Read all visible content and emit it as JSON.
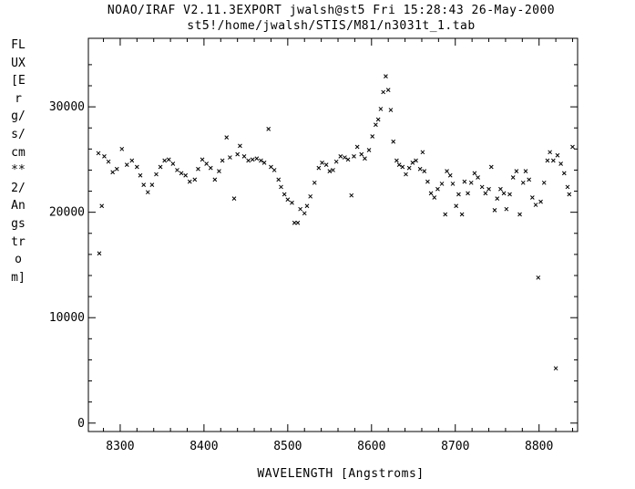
{
  "header": {
    "line1": "NOAO/IRAF V2.11.3EXPORT jwalsh@st5 Fri 15:28:43 26-May-2000",
    "line2": "st5!/home/jwalsh/STIS/M81/n3031t_1.tab"
  },
  "chart_data": {
    "type": "scatter",
    "title": "",
    "xlabel": "WAVELENGTH [Angstroms]",
    "ylabel": "FLUX [Erg/s/cm**2/Angstrom]",
    "xlim": [
      8262,
      8846
    ],
    "ylim": [
      -800,
      36500
    ],
    "xticks": [
      8300,
      8400,
      8500,
      8600,
      8700,
      8800
    ],
    "yticks": [
      0,
      10000,
      20000,
      30000
    ],
    "marker": "x",
    "grid": false,
    "points": [
      [
        8274,
        25600
      ],
      [
        8275,
        16100
      ],
      [
        8278,
        20600
      ],
      [
        8281,
        25300
      ],
      [
        8286,
        24800
      ],
      [
        8291,
        23800
      ],
      [
        8296,
        24100
      ],
      [
        8302,
        26000
      ],
      [
        8308,
        24500
      ],
      [
        8314,
        24900
      ],
      [
        8320,
        24300
      ],
      [
        8324,
        23500
      ],
      [
        8328,
        22600
      ],
      [
        8333,
        21900
      ],
      [
        8338,
        22600
      ],
      [
        8343,
        23600
      ],
      [
        8348,
        24300
      ],
      [
        8353,
        24900
      ],
      [
        8358,
        25000
      ],
      [
        8363,
        24600
      ],
      [
        8368,
        24000
      ],
      [
        8373,
        23700
      ],
      [
        8378,
        23500
      ],
      [
        8383,
        22900
      ],
      [
        8389,
        23100
      ],
      [
        8393,
        24100
      ],
      [
        8398,
        25000
      ],
      [
        8403,
        24600
      ],
      [
        8408,
        24200
      ],
      [
        8413,
        23100
      ],
      [
        8418,
        23900
      ],
      [
        8422,
        24900
      ],
      [
        8427,
        27100
      ],
      [
        8431,
        25200
      ],
      [
        8436,
        21300
      ],
      [
        8440,
        25500
      ],
      [
        8443,
        26300
      ],
      [
        8448,
        25300
      ],
      [
        8453,
        24900
      ],
      [
        8458,
        25000
      ],
      [
        8463,
        25100
      ],
      [
        8468,
        24900
      ],
      [
        8472,
        24700
      ],
      [
        8477,
        27900
      ],
      [
        8480,
        24300
      ],
      [
        8484,
        24000
      ],
      [
        8489,
        23100
      ],
      [
        8492,
        22400
      ],
      [
        8496,
        21700
      ],
      [
        8500,
        21200
      ],
      [
        8505,
        20900
      ],
      [
        8508,
        19000
      ],
      [
        8512,
        19000
      ],
      [
        8515,
        20300
      ],
      [
        8520,
        19900
      ],
      [
        8523,
        20600
      ],
      [
        8527,
        21500
      ],
      [
        8532,
        22800
      ],
      [
        8537,
        24200
      ],
      [
        8541,
        24700
      ],
      [
        8546,
        24500
      ],
      [
        8550,
        23900
      ],
      [
        8554,
        24000
      ],
      [
        8558,
        24800
      ],
      [
        8563,
        25300
      ],
      [
        8568,
        25200
      ],
      [
        8572,
        25000
      ],
      [
        8576,
        21600
      ],
      [
        8579,
        25300
      ],
      [
        8583,
        26200
      ],
      [
        8588,
        25500
      ],
      [
        8592,
        25100
      ],
      [
        8597,
        25900
      ],
      [
        8601,
        27200
      ],
      [
        8605,
        28300
      ],
      [
        8608,
        28800
      ],
      [
        8611,
        29800
      ],
      [
        8614,
        31400
      ],
      [
        8617,
        32900
      ],
      [
        8620,
        31600
      ],
      [
        8623,
        29700
      ],
      [
        8626,
        26700
      ],
      [
        8630,
        24900
      ],
      [
        8633,
        24500
      ],
      [
        8637,
        24300
      ],
      [
        8641,
        23600
      ],
      [
        8645,
        24200
      ],
      [
        8649,
        24700
      ],
      [
        8653,
        24900
      ],
      [
        8658,
        24100
      ],
      [
        8661,
        25700
      ],
      [
        8663,
        23900
      ],
      [
        8667,
        22900
      ],
      [
        8671,
        21800
      ],
      [
        8675,
        21400
      ],
      [
        8679,
        22200
      ],
      [
        8684,
        22700
      ],
      [
        8688,
        19800
      ],
      [
        8690,
        23900
      ],
      [
        8694,
        23500
      ],
      [
        8697,
        22700
      ],
      [
        8701,
        20600
      ],
      [
        8704,
        21700
      ],
      [
        8708,
        19800
      ],
      [
        8711,
        22900
      ],
      [
        8715,
        21800
      ],
      [
        8719,
        22800
      ],
      [
        8723,
        23700
      ],
      [
        8727,
        23300
      ],
      [
        8732,
        22400
      ],
      [
        8736,
        21800
      ],
      [
        8740,
        22200
      ],
      [
        8743,
        24300
      ],
      [
        8747,
        20200
      ],
      [
        8750,
        21300
      ],
      [
        8754,
        22200
      ],
      [
        8758,
        21800
      ],
      [
        8761,
        20300
      ],
      [
        8765,
        21700
      ],
      [
        8769,
        23300
      ],
      [
        8773,
        23900
      ],
      [
        8777,
        19800
      ],
      [
        8781,
        22800
      ],
      [
        8784,
        23900
      ],
      [
        8788,
        23100
      ],
      [
        8792,
        21400
      ],
      [
        8796,
        20700
      ],
      [
        8799,
        13800
      ],
      [
        8802,
        21000
      ],
      [
        8806,
        22800
      ],
      [
        8810,
        24900
      ],
      [
        8813,
        25700
      ],
      [
        8817,
        24900
      ],
      [
        8820,
        5200
      ],
      [
        8822,
        25400
      ],
      [
        8826,
        24600
      ],
      [
        8830,
        23700
      ],
      [
        8834,
        22400
      ],
      [
        8836,
        21700
      ],
      [
        8840,
        26200
      ]
    ]
  }
}
